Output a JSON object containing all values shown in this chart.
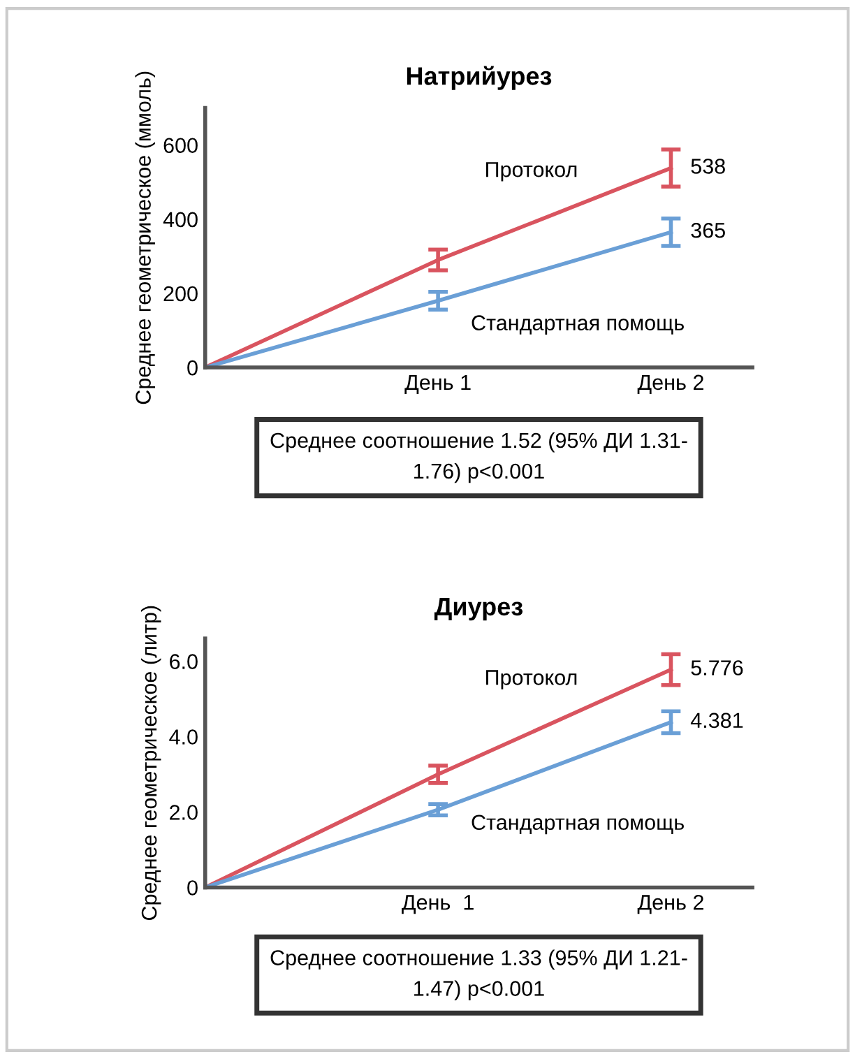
{
  "chart_data": [
    {
      "type": "line",
      "title": "Натрийурез",
      "ylabel": "Среднее геометрическое (ммоль)",
      "categories": [
        null,
        "День 1",
        "День 2"
      ],
      "series": [
        {
          "name": "Протокол",
          "color": "#d9545f",
          "values": [
            0,
            290,
            538
          ],
          "errors": [
            null,
            28,
            50
          ],
          "value_labels": [
            null,
            null,
            "538"
          ]
        },
        {
          "name": "Стандартная помощь",
          "color": "#6a9fd6",
          "values": [
            0,
            180,
            365
          ],
          "errors": [
            null,
            24,
            37
          ],
          "value_labels": [
            null,
            null,
            "365"
          ]
        }
      ],
      "ylim": [
        0,
        700
      ],
      "yticks": [
        0,
        200,
        400,
        600
      ],
      "grid": false,
      "legend": false,
      "marker": "none",
      "line_style": "solid",
      "annotations": [
        "Среднее соотношение 1.52 (95% ДИ 1.31-\n1.76) p<0.001"
      ]
    },
    {
      "type": "line",
      "title": "Диурез",
      "ylabel": "Среднее геометрическое (литр)",
      "categories": [
        null,
        "День  1",
        "День 2"
      ],
      "series": [
        {
          "name": "Протокол",
          "color": "#d9545f",
          "values": [
            0,
            3.0,
            5.776
          ],
          "errors": [
            null,
            0.23,
            0.41
          ],
          "value_labels": [
            null,
            null,
            "5.776"
          ]
        },
        {
          "name": "Стандартная помощь",
          "color": "#6a9fd6",
          "values": [
            0,
            2.06,
            4.381
          ],
          "errors": [
            null,
            0.15,
            0.29
          ],
          "value_labels": [
            null,
            null,
            "4.381"
          ]
        }
      ],
      "ylim": [
        0,
        6.6
      ],
      "yticks": [
        0,
        {
          "value": 2,
          "label": "2.0"
        },
        {
          "value": 4,
          "label": "4.0"
        },
        {
          "value": 6,
          "label": "6.0"
        }
      ],
      "grid": false,
      "legend": false,
      "marker": "none",
      "line_style": "solid",
      "annotations": [
        "Среднее соотношение 1.33 (95% ДИ 1.21-\n1.47) p<0.001"
      ]
    }
  ]
}
